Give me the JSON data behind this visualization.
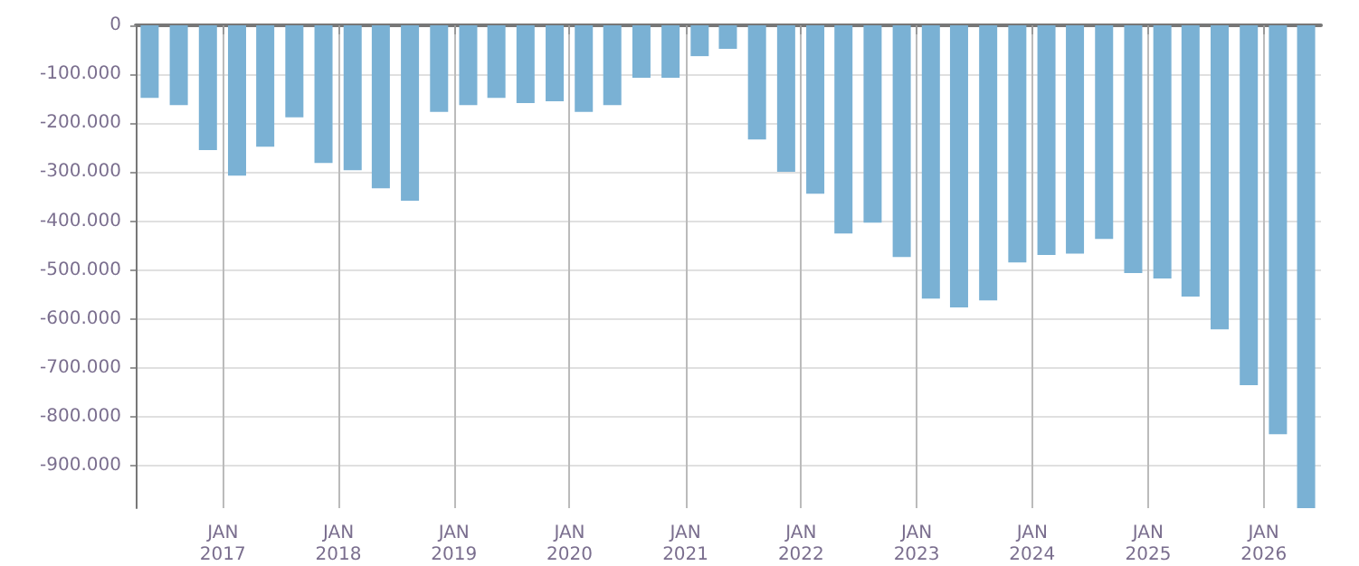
{
  "chart_data": {
    "type": "bar",
    "x": [
      "2016-05-15",
      "2016-08-15",
      "2016-11-15",
      "2017-02-15",
      "2017-05-15",
      "2017-08-15",
      "2017-11-15",
      "2018-02-15",
      "2018-05-15",
      "2018-08-15",
      "2018-11-15",
      "2019-02-15",
      "2019-05-15",
      "2019-08-15",
      "2019-11-15",
      "2020-02-15",
      "2020-05-15",
      "2020-08-15",
      "2020-11-15",
      "2021-02-15",
      "2021-05-15",
      "2021-08-15",
      "2021-11-15",
      "2022-02-15",
      "2022-05-15",
      "2022-08-15",
      "2022-11-15",
      "2023-02-15",
      "2023-05-15",
      "2023-08-15",
      "2023-11-15",
      "2024-02-15",
      "2024-05-15",
      "2024-08-15",
      "2024-11-15",
      "2025-02-15",
      "2025-05-15",
      "2025-08-15",
      "2025-11-15",
      "2026-02-15",
      "2026-05-15"
    ],
    "values": [
      -148000,
      -163000,
      -255000,
      -307000,
      -248000,
      -188000,
      -281000,
      -296000,
      -333000,
      -358000,
      -177000,
      -163000,
      -148000,
      -159000,
      -155000,
      -177000,
      -163000,
      -107000,
      -107000,
      -63000,
      -48000,
      -233000,
      -299000,
      -344000,
      -425000,
      -403000,
      -473000,
      -558000,
      -576000,
      -562000,
      -484000,
      -469000,
      -466000,
      -436000,
      -506000,
      -517000,
      -554000,
      -621000,
      -735000,
      -835000,
      -986000
    ],
    "color": "#7ab1d4",
    "xlim": [
      "2016-04-01",
      "2026-07-01"
    ],
    "xticks": [
      {
        "value": "2017-01",
        "label": "JAN\n2017"
      },
      {
        "value": "2018-01",
        "label": "JAN\n2018"
      },
      {
        "value": "2019-01",
        "label": "JAN\n2019"
      },
      {
        "value": "2020-01",
        "label": "JAN\n2020"
      },
      {
        "value": "2021-01",
        "label": "JAN\n2021"
      },
      {
        "value": "2022-01",
        "label": "JAN\n2022"
      },
      {
        "value": "2023-01",
        "label": "JAN\n2023"
      },
      {
        "value": "2024-01",
        "label": "JAN\n2024"
      },
      {
        "value": "2025-01",
        "label": "JAN\n2025"
      },
      {
        "value": "2026-01",
        "label": "JAN\n2026"
      }
    ],
    "ylim": [
      -986000,
      0
    ],
    "yticks": [
      0,
      {
        "value": -100000,
        "label": "-100.000"
      },
      {
        "value": -200000,
        "label": "-200.000"
      },
      {
        "value": -300000,
        "label": "-300.000"
      },
      {
        "value": -400000,
        "label": "-400.000"
      },
      {
        "value": -500000,
        "label": "-500.000"
      },
      {
        "value": -600000,
        "label": "-600.000"
      },
      {
        "value": -700000,
        "label": "-700.000"
      },
      {
        "value": -800000,
        "label": "-800.000"
      },
      {
        "value": -900000,
        "label": "-900.000"
      }
    ],
    "grid": true
  }
}
